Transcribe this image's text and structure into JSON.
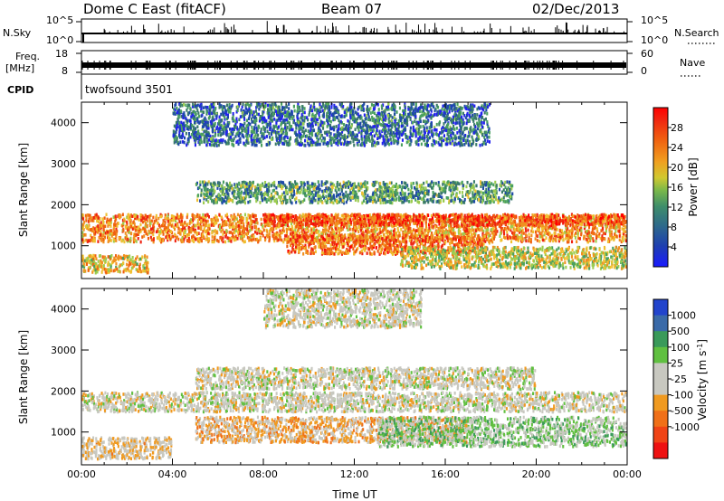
{
  "header": {
    "station": "Dome C East (fitACF)",
    "beam": "Beam 07",
    "date": "02/Dec/2013"
  },
  "strips": {
    "nsky_label": "N.Sky",
    "nsky_ticks": [
      "10^5",
      "10^0"
    ],
    "nsearch_label": "N.Search",
    "nsearch_ticks": [
      "10^5",
      "10^0"
    ],
    "freq_label_1": "Freq.",
    "freq_label_2": "[MHz]",
    "freq_ticks": [
      "18",
      "8"
    ],
    "nave_label": "Nave",
    "nave_ticks": [
      "60",
      "0"
    ],
    "cpid_label": "CPID",
    "cpid_value": "twofsound 3501"
  },
  "colors": {
    "power_scale": [
      "#2222ee",
      "#1e4aa8",
      "#3a7a6a",
      "#4aa060",
      "#9ccc50",
      "#f0c030",
      "#f09020",
      "#f06010",
      "#ee2211",
      "#ff0000"
    ],
    "velocity_scale": [
      "#ee1111",
      "#f04416",
      "#f07018",
      "#f09a20",
      "#c8c8c0",
      "#c8c8c0",
      "#60c040",
      "#3a9a5a",
      "#3a6aa8",
      "#2244cc"
    ]
  },
  "chart_data": [
    {
      "type": "heatmap",
      "name": "power",
      "ylabel": "Slant Range [km]",
      "xlabel": "",
      "x_ticks": [],
      "y_ticks": [
        "1000",
        "2000",
        "3000",
        "4000"
      ],
      "ylim": [
        200,
        4500
      ],
      "colorbar_label": "Power [dB]",
      "colorbar_ticks": [
        "4",
        "8",
        "12",
        "16",
        "20",
        "24",
        "28"
      ],
      "colorbar_range": [
        0,
        32
      ],
      "bands": [
        {
          "t": [
            0,
            24
          ],
          "r": [
            1050,
            1800
          ],
          "value": 22
        },
        {
          "t": [
            8,
            24
          ],
          "r": [
            1450,
            1800
          ],
          "value": 26
        },
        {
          "t": [
            9,
            18
          ],
          "r": [
            750,
            1300
          ],
          "value": 24
        },
        {
          "t": [
            0,
            3
          ],
          "r": [
            300,
            800
          ],
          "value": 18
        },
        {
          "t": [
            14,
            24
          ],
          "r": [
            400,
            1000
          ],
          "value": 16
        },
        {
          "t": [
            5,
            19
          ],
          "r": [
            2000,
            2600
          ],
          "value": 10
        },
        {
          "t": [
            4,
            18
          ],
          "r": [
            3400,
            4500
          ],
          "value": 6
        }
      ]
    },
    {
      "type": "heatmap",
      "name": "velocity",
      "ylabel": "Slant Range [km]",
      "xlabel": "Time UT",
      "x_ticks": [
        "00:00",
        "04:00",
        "08:00",
        "12:00",
        "16:00",
        "20:00",
        "00:00"
      ],
      "y_ticks": [
        "1000",
        "2000",
        "3000",
        "4000"
      ],
      "ylim": [
        200,
        4500
      ],
      "colorbar_label": "Velocity [m s^-1]",
      "colorbar_ticks": [
        "1000",
        "500",
        "100",
        "25",
        "-25",
        "-100",
        "-500",
        "-1000"
      ],
      "colorbar_range": [
        -1250,
        1250
      ],
      "bands": [
        {
          "t": [
            0,
            24
          ],
          "r": [
            1450,
            2000
          ],
          "value": 0
        },
        {
          "t": [
            5,
            17
          ],
          "r": [
            700,
            1400
          ],
          "value": -300
        },
        {
          "t": [
            13,
            24
          ],
          "r": [
            600,
            1400
          ],
          "value": 300
        },
        {
          "t": [
            0,
            4
          ],
          "r": [
            300,
            900
          ],
          "value": -150
        },
        {
          "t": [
            5,
            20
          ],
          "r": [
            2000,
            2600
          ],
          "value": 0
        },
        {
          "t": [
            8,
            15
          ],
          "r": [
            3500,
            4500
          ],
          "value": 0
        }
      ]
    }
  ]
}
